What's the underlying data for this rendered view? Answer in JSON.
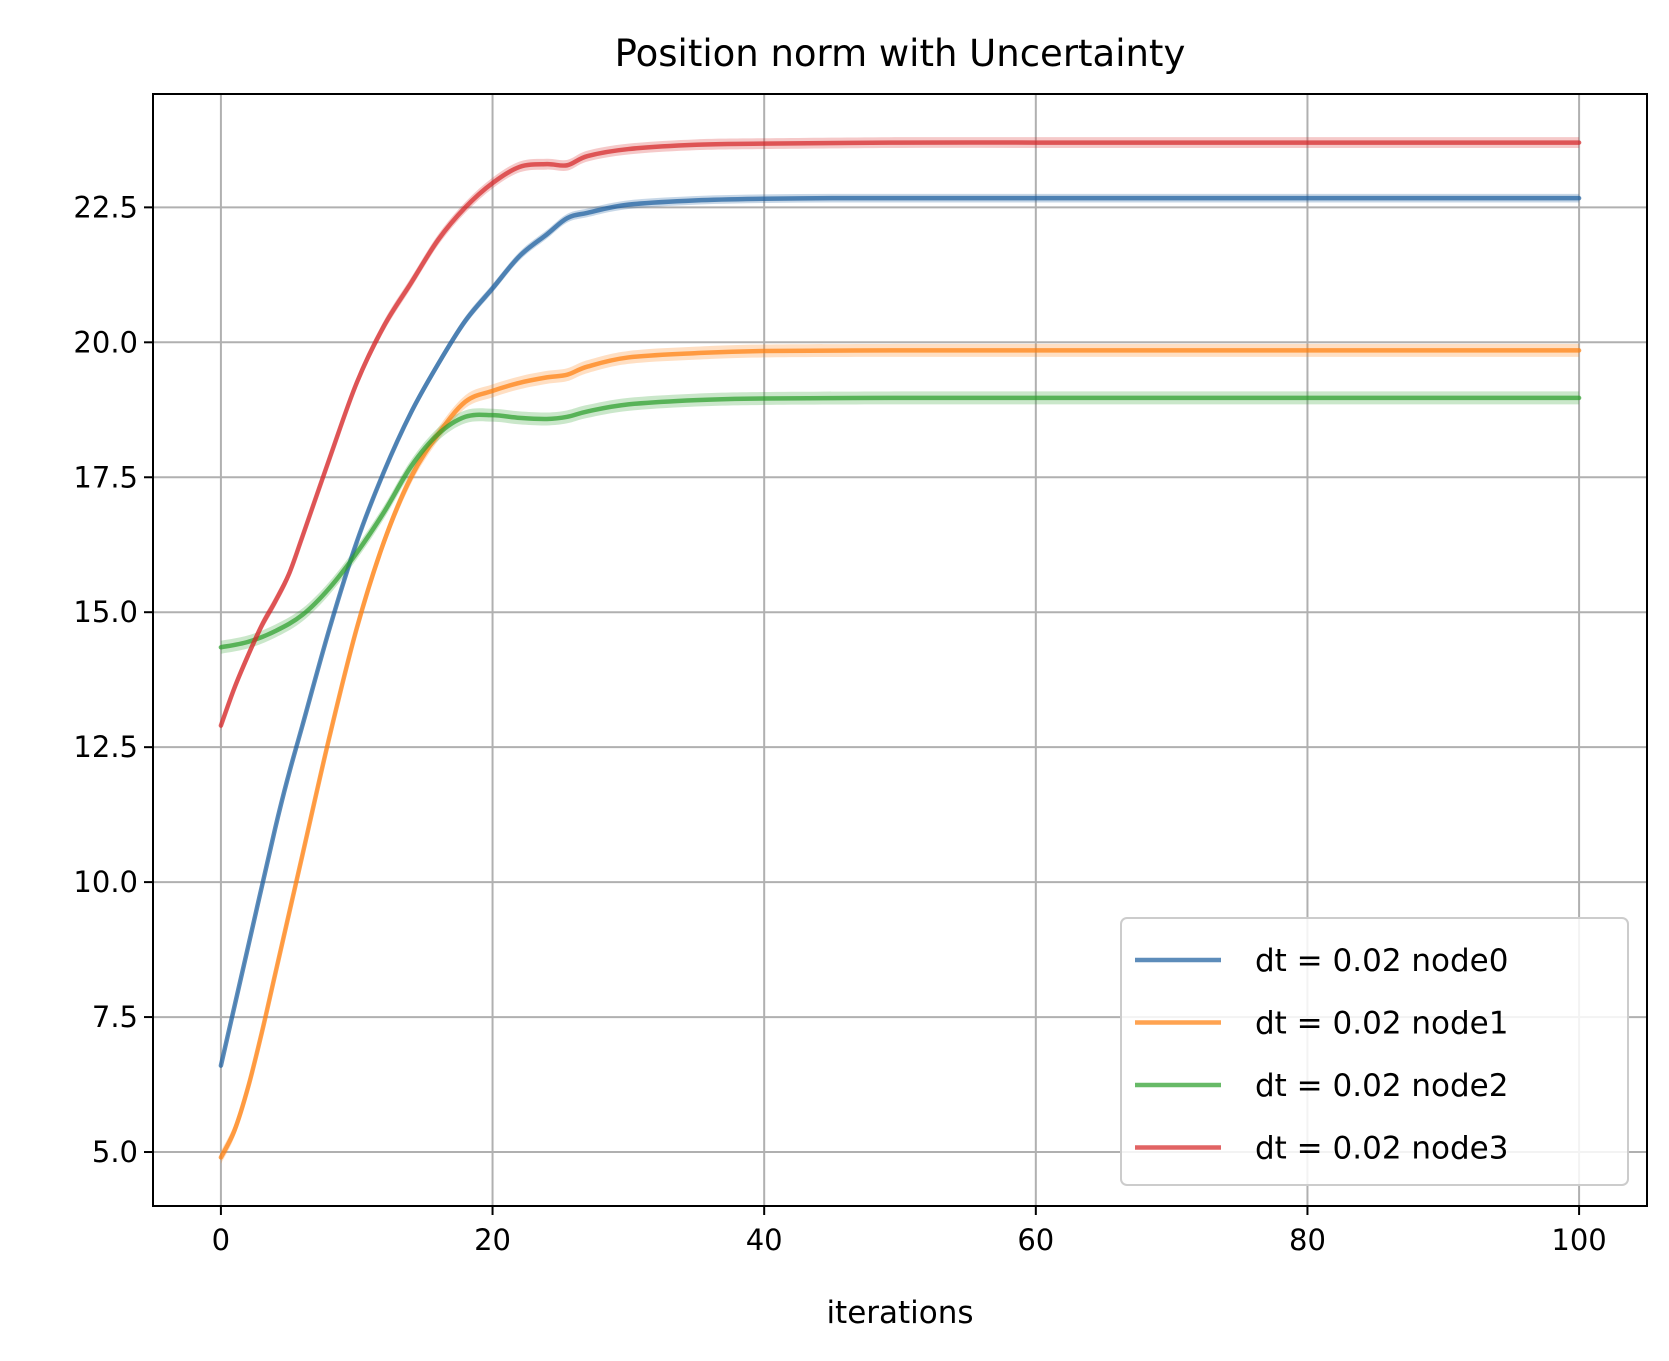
{
  "chart_data": {
    "type": "line",
    "title": "Position norm with Uncertainty",
    "xlabel": "iterations",
    "ylabel": "",
    "xlim": [
      -5,
      105
    ],
    "ylim": [
      4,
      24.6
    ],
    "xticks": [
      0,
      20,
      40,
      60,
      80,
      100
    ],
    "yticks": [
      5.0,
      7.5,
      10.0,
      12.5,
      15.0,
      17.5,
      20.0,
      22.5
    ],
    "xtick_labels": [
      "0",
      "20",
      "40",
      "60",
      "80",
      "100"
    ],
    "ytick_labels": [
      "5.0",
      "7.5",
      "10.0",
      "12.5",
      "15.0",
      "17.5",
      "20.0",
      "22.5"
    ],
    "grid": true,
    "legend_position": "lower-right",
    "series": [
      {
        "name": "dt = 0.02 node0",
        "color": "#1f5fa0",
        "band_halfwidth": 0.08,
        "x": [
          0,
          2,
          4,
          5,
          6,
          8,
          10,
          12,
          14,
          16,
          18,
          20,
          22,
          24,
          25.5,
          27,
          30,
          35,
          40,
          45,
          50,
          60,
          70,
          80,
          90,
          100
        ],
        "y": [
          6.6,
          8.8,
          11.0,
          12.0,
          12.9,
          14.7,
          16.3,
          17.6,
          18.7,
          19.6,
          20.4,
          21.0,
          21.6,
          22.0,
          22.3,
          22.4,
          22.55,
          22.63,
          22.66,
          22.67,
          22.67,
          22.67,
          22.67,
          22.67,
          22.67,
          22.67
        ]
      },
      {
        "name": "dt = 0.02 node1",
        "color": "#ff7f0e",
        "band_halfwidth": 0.12,
        "x": [
          0,
          1,
          2,
          3,
          4,
          6,
          8,
          10,
          12,
          14,
          16,
          18,
          20,
          22,
          24,
          25.5,
          27,
          30,
          35,
          40,
          50,
          60,
          70,
          80,
          90,
          100
        ],
        "y": [
          4.9,
          5.4,
          6.2,
          7.2,
          8.3,
          10.5,
          12.7,
          14.7,
          16.3,
          17.5,
          18.3,
          18.9,
          19.1,
          19.25,
          19.35,
          19.4,
          19.55,
          19.72,
          19.8,
          19.84,
          19.85,
          19.85,
          19.85,
          19.85,
          19.85,
          19.85
        ]
      },
      {
        "name": "dt = 0.02 node2",
        "color": "#2ca02c",
        "band_halfwidth": 0.12,
        "x": [
          0,
          2,
          4,
          6,
          8,
          10,
          12,
          14,
          16,
          18,
          20,
          22,
          24,
          25.5,
          27,
          30,
          35,
          40,
          50,
          60,
          70,
          80,
          90,
          100
        ],
        "y": [
          14.35,
          14.45,
          14.65,
          14.95,
          15.45,
          16.1,
          16.85,
          17.7,
          18.3,
          18.62,
          18.65,
          18.6,
          18.58,
          18.62,
          18.72,
          18.85,
          18.93,
          18.96,
          18.97,
          18.97,
          18.97,
          18.97,
          18.97,
          18.97
        ]
      },
      {
        "name": "dt = 0.02 node3",
        "color": "#d62728",
        "band_halfwidth": 0.1,
        "x": [
          0,
          1,
          2,
          3,
          4,
          5,
          6,
          8,
          10,
          12,
          14,
          16,
          18,
          20,
          22,
          24,
          25.5,
          27,
          30,
          35,
          40,
          50,
          60,
          70,
          80,
          90,
          100
        ],
        "y": [
          12.9,
          13.6,
          14.2,
          14.75,
          15.2,
          15.7,
          16.4,
          17.85,
          19.25,
          20.3,
          21.1,
          21.9,
          22.5,
          22.95,
          23.25,
          23.3,
          23.28,
          23.45,
          23.58,
          23.66,
          23.68,
          23.7,
          23.7,
          23.7,
          23.7,
          23.7,
          23.7
        ]
      }
    ]
  }
}
